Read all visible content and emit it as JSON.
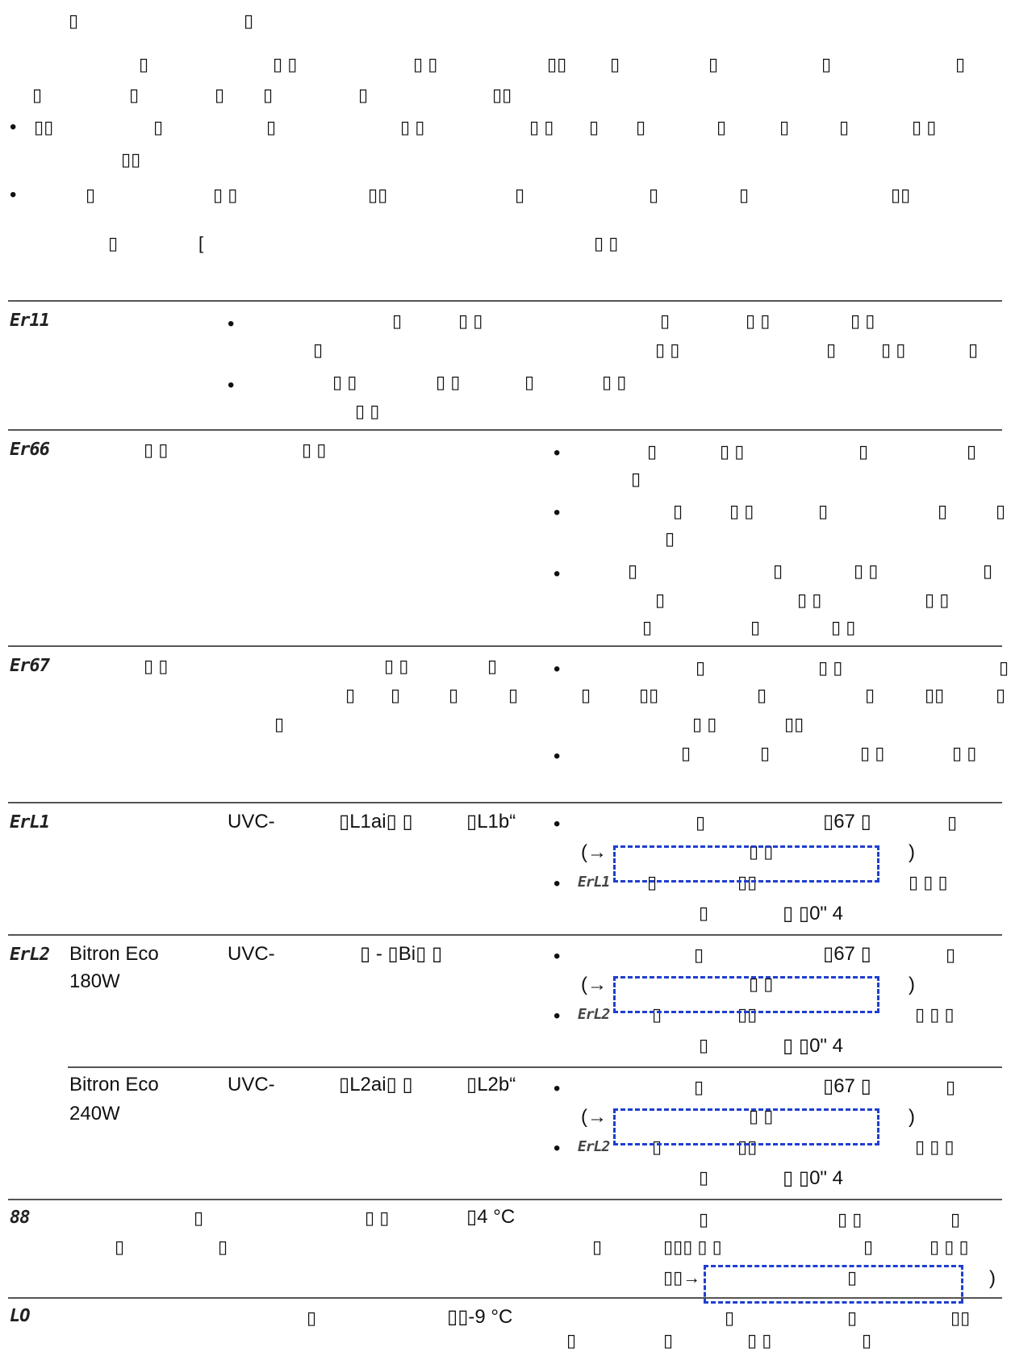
{
  "intro": {
    "title": [
      "▯",
      "▯"
    ],
    "para_line1": [
      "▯",
      "▯ ▯",
      "▯ ▯",
      "▯▯",
      "▯",
      "▯",
      "▯",
      "▯"
    ],
    "para_line2": [
      "▯",
      "▯",
      "▯",
      "▯",
      "▯",
      "▯▯"
    ],
    "bullet1_line1": [
      "▯▯",
      "▯",
      "▯",
      "▯ ▯",
      "▯ ▯",
      "▯",
      "▯",
      "▯",
      "▯",
      "▯",
      "▯ ▯"
    ],
    "bullet1_line2": "▯▯",
    "bullet2_line1": [
      "▯",
      "▯ ▯",
      "▯▯",
      "▯",
      "▯",
      "▯",
      "▯▯"
    ],
    "header": [
      "▯",
      "[",
      "▯ ▯"
    ]
  },
  "rows": {
    "er11": {
      "code": "Er11",
      "b1": [
        "▯",
        "▯ ▯",
        "▯",
        "▯ ▯",
        "▯ ▯"
      ],
      "b1_l2": [
        "▯",
        "▯ ▯",
        "▯",
        "▯ ▯",
        "▯"
      ],
      "b2": [
        "▯ ▯",
        "▯ ▯",
        "▯",
        "▯ ▯"
      ],
      "b2_l2": "▯ ▯"
    },
    "er66": {
      "code": "Er66",
      "desc": [
        "▯ ▯",
        "▯ ▯"
      ],
      "b1": [
        "▯",
        "▯ ▯",
        "▯",
        "▯"
      ],
      "b1_l2": "▯",
      "b2": [
        "▯",
        "▯ ▯",
        "▯",
        "▯",
        "▯"
      ],
      "b2_l2": "▯",
      "b3": [
        "▯",
        "▯",
        "▯ ▯",
        "▯"
      ],
      "b3_l2": [
        "▯",
        "▯ ▯",
        "▯ ▯"
      ],
      "b3_l3": [
        "▯",
        "▯",
        "▯ ▯"
      ]
    },
    "er67": {
      "code": "Er67",
      "desc": [
        "▯ ▯",
        "▯ ▯",
        "▯"
      ],
      "desc_l2": [
        "▯",
        "▯",
        "▯",
        "▯"
      ],
      "desc_l3": "▯",
      "b1": [
        "▯",
        "▯ ▯",
        "▯"
      ],
      "b1_l2": [
        "▯",
        "▯▯",
        "▯",
        "▯",
        "▯▯",
        "▯"
      ],
      "b1_l3": [
        "▯ ▯",
        "▯▯"
      ],
      "b2": [
        "▯",
        "▯",
        "▯ ▯",
        "▯ ▯"
      ]
    },
    "erl1": {
      "code": "ErL1",
      "uvc": "UVC-",
      "model_a": "▯L1ai▯ ▯",
      "model_b": "▯L1b“",
      "b1": [
        "▯",
        "▯67 ▯",
        "▯"
      ],
      "b1_l2_open": "(→",
      "b1_l2_mid": "▯ ▯",
      "b1_l2_close": ")",
      "b2_code": "ErL1",
      "b2": [
        "▯",
        "▯▯",
        "▯ ▯ ▯"
      ],
      "b2_l2": [
        "▯",
        "▯  ▯0\" 4"
      ]
    },
    "erl2_180": {
      "code": "ErL2",
      "name": "Bitron Eco",
      "name_l2": "180W",
      "uvc": "UVC-",
      "model": "▯ - ▯Bi▯ ▯",
      "b1": [
        "▯",
        "▯67 ▯",
        "▯"
      ],
      "b1_l2_open": "(→",
      "b1_l2_mid": "▯ ▯",
      "b1_l2_close": ")",
      "b2_code": "ErL2",
      "b2": [
        "▯",
        "▯▯",
        "▯ ▯ ▯"
      ],
      "b2_l2": [
        "▯",
        "▯  ▯0\" 4"
      ]
    },
    "erl2_240": {
      "name": "Bitron Eco",
      "name_l2": "240W",
      "uvc": "UVC-",
      "model_a": "▯L2ai▯ ▯",
      "model_b": "▯L2b“",
      "b1": [
        "▯",
        "▯67 ▯",
        "▯"
      ],
      "b1_l2_open": "(→",
      "b1_l2_mid": "▯ ▯",
      "b1_l2_close": ")",
      "b2_code": "ErL2",
      "b2": [
        "▯",
        "▯▯",
        "▯ ▯ ▯"
      ],
      "b2_l2": [
        "▯",
        "▯  ▯0\" 4"
      ]
    },
    "r88": {
      "code": "88",
      "desc": [
        "▯",
        "▯ ▯",
        "▯4 °C"
      ],
      "desc_l2": [
        "▯",
        "▯"
      ],
      "right": [
        "▯",
        "▯ ▯",
        "▯"
      ],
      "right_l2": [
        "▯",
        "▯▯▯ ▯ ▯",
        "▯",
        "▯ ▯ ▯"
      ],
      "right_l3_open": "▯▯→",
      "right_l3_mid": "▯",
      "right_l3_close": ")"
    },
    "lo": {
      "code": "LO",
      "desc": [
        "▯",
        "▯▯-9 °C"
      ],
      "right": [
        "▯",
        "▯",
        "▯▯"
      ],
      "right_l2": [
        "▯",
        "▯",
        "▯ ▯",
        "▯"
      ]
    }
  },
  "colors": {
    "highlight_dash": "#1f3fcf",
    "rule": "#555555"
  }
}
